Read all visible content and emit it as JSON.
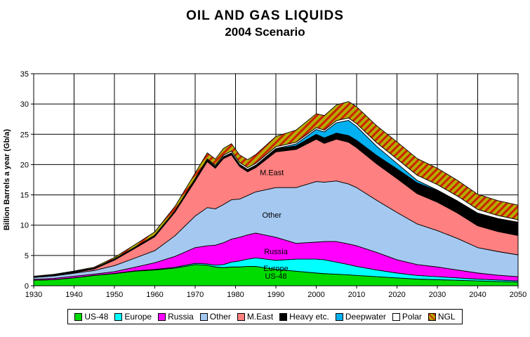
{
  "title": {
    "line1": "OIL AND GAS LIQUIDS",
    "line2": "2004 Scenario"
  },
  "chart_data": {
    "type": "area",
    "stacked": true,
    "title": "OIL AND GAS LIQUIDS - 2004 Scenario",
    "xlabel": "",
    "ylabel": "Billion Barrels a year (Gb/a)",
    "xlim": [
      1930,
      2050
    ],
    "ylim": [
      0,
      35
    ],
    "xticks": [
      1930,
      1940,
      1950,
      1960,
      1970,
      1980,
      1990,
      2000,
      2010,
      2020,
      2030,
      2040,
      2050
    ],
    "yticks": [
      0,
      5,
      10,
      15,
      20,
      25,
      30,
      35
    ],
    "grid": true,
    "legend_position": "bottom",
    "years": [
      1930,
      1935,
      1940,
      1945,
      1950,
      1955,
      1960,
      1965,
      1970,
      1973,
      1975,
      1977,
      1979,
      1981,
      1983,
      1985,
      1990,
      1995,
      2000,
      2002,
      2005,
      2008,
      2010,
      2015,
      2020,
      2025,
      2030,
      2035,
      2040,
      2045,
      2050
    ],
    "series": [
      {
        "name": "US-48",
        "color": "#00DC00",
        "values": [
          0.9,
          1.0,
          1.3,
          1.7,
          2.0,
          2.4,
          2.6,
          2.9,
          3.5,
          3.4,
          3.1,
          3.0,
          3.1,
          3.1,
          3.2,
          3.2,
          2.7,
          2.4,
          2.1,
          2.0,
          1.9,
          1.8,
          1.7,
          1.5,
          1.3,
          1.1,
          1.0,
          0.9,
          0.8,
          0.7,
          0.6
        ]
      },
      {
        "name": "Europe",
        "color": "#00FFFF",
        "values": [
          0.02,
          0.02,
          0.02,
          0.02,
          0.03,
          0.05,
          0.1,
          0.15,
          0.2,
          0.2,
          0.3,
          0.5,
          0.8,
          1.0,
          1.2,
          1.4,
          1.5,
          2.0,
          2.3,
          2.3,
          2.0,
          1.7,
          1.5,
          1.1,
          0.8,
          0.6,
          0.5,
          0.4,
          0.3,
          0.25,
          0.2
        ]
      },
      {
        "name": "Russia",
        "color": "#FF00FF",
        "values": [
          0.15,
          0.2,
          0.25,
          0.2,
          0.3,
          0.6,
          1.1,
          1.8,
          2.6,
          3.0,
          3.3,
          3.6,
          3.8,
          3.9,
          4.0,
          4.1,
          3.8,
          2.6,
          2.8,
          3.0,
          3.4,
          3.4,
          3.4,
          2.9,
          2.2,
          1.8,
          1.6,
          1.3,
          1.0,
          0.8,
          0.7
        ]
      },
      {
        "name": "Other",
        "color": "#A5C8F0",
        "values": [
          0.3,
          0.4,
          0.5,
          0.6,
          1.0,
          1.5,
          2.0,
          3.4,
          5.2,
          6.3,
          6.0,
          6.3,
          6.5,
          6.3,
          6.5,
          6.8,
          8.2,
          9.2,
          10.0,
          9.8,
          10.0,
          9.9,
          9.6,
          8.6,
          7.8,
          6.7,
          6.0,
          5.2,
          4.2,
          3.9,
          3.6
        ]
      },
      {
        "name": "M.East",
        "color": "#FF8080",
        "values": [
          0.05,
          0.1,
          0.1,
          0.25,
          0.9,
          1.6,
          2.3,
          3.9,
          5.8,
          7.6,
          6.7,
          7.6,
          7.4,
          5.4,
          3.9,
          4.0,
          5.9,
          6.3,
          7.0,
          6.4,
          6.9,
          6.9,
          6.6,
          6.0,
          5.6,
          5.0,
          4.7,
          4.2,
          3.6,
          3.3,
          3.2
        ]
      },
      {
        "name": "Heavy etc.",
        "color": "#000000",
        "values": [
          0.1,
          0.1,
          0.15,
          0.15,
          0.2,
          0.2,
          0.25,
          0.25,
          0.3,
          0.3,
          0.3,
          0.3,
          0.35,
          0.35,
          0.4,
          0.4,
          0.5,
          0.6,
          0.8,
          0.9,
          1.0,
          1.1,
          1.2,
          1.4,
          1.6,
          1.8,
          1.9,
          2.0,
          2.1,
          2.15,
          2.2
        ]
      },
      {
        "name": "Deepwater",
        "color": "#00B0F0",
        "values": [
          0,
          0,
          0,
          0,
          0,
          0,
          0,
          0,
          0,
          0,
          0,
          0,
          0,
          0,
          0,
          0,
          0.05,
          0.3,
          0.8,
          1.0,
          1.7,
          2.5,
          2.3,
          1.5,
          0.9,
          0.4,
          0.1,
          0,
          0,
          0,
          0
        ]
      },
      {
        "name": "Polar",
        "color": "#FFFFFF",
        "values": [
          0,
          0,
          0,
          0,
          0,
          0,
          0,
          0,
          0.1,
          0.15,
          0.2,
          0.25,
          0.3,
          0.3,
          0.3,
          0.3,
          0.3,
          0.3,
          0.3,
          0.3,
          0.35,
          0.4,
          0.45,
          0.6,
          0.75,
          0.85,
          0.9,
          0.8,
          0.6,
          0.5,
          0.4
        ]
      },
      {
        "name": "NGL",
        "color": "#B4AC00",
        "hatched": true,
        "hatch_stripe": "#CC2200",
        "values": [
          0.05,
          0.07,
          0.1,
          0.15,
          0.25,
          0.4,
          0.55,
          0.7,
          0.9,
          1.0,
          1.0,
          1.1,
          1.2,
          1.25,
          1.3,
          1.45,
          1.7,
          2.0,
          2.3,
          2.4,
          2.6,
          2.7,
          2.8,
          2.8,
          2.8,
          2.75,
          2.7,
          2.6,
          2.5,
          2.45,
          2.4
        ]
      }
    ],
    "area_labels": [
      {
        "text": "M.East",
        "year": 1989,
        "value": 18.7
      },
      {
        "text": "Other",
        "year": 1989,
        "value": 11.7
      },
      {
        "text": "Russia",
        "year": 1990,
        "value": 5.7
      },
      {
        "text": "Europe",
        "year": 1990,
        "value": 2.9
      },
      {
        "text": "US-48",
        "year": 1990,
        "value": 1.6
      }
    ]
  }
}
